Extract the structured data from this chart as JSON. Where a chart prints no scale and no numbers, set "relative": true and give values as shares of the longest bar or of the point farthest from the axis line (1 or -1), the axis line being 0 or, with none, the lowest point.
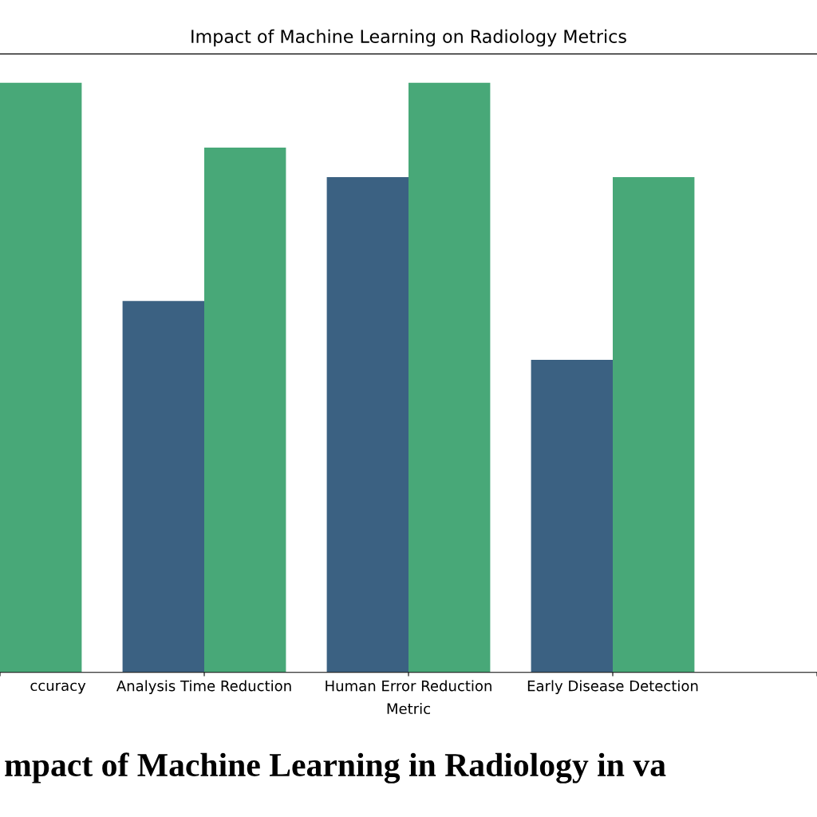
{
  "chart_data": {
    "type": "bar",
    "relative": true,
    "title": "Impact of Machine Learning on Radiology Metrics",
    "xlabel": "Metric",
    "categories": [
      "ccuracy",
      "Analysis Time Reduction",
      "Human Error Reduction",
      "Early Disease Detection",
      null
    ],
    "series": [
      {
        "color": "#3b6182",
        "values": [
          null,
          0.63,
          0.84,
          0.53,
          null
        ]
      },
      {
        "color": "#48a878",
        "values": [
          1.0,
          0.89,
          1.0,
          0.84,
          null
        ]
      }
    ],
    "annotations": [
      "mpact of Machine Learning in Radiology in va"
    ],
    "grid": false
  }
}
